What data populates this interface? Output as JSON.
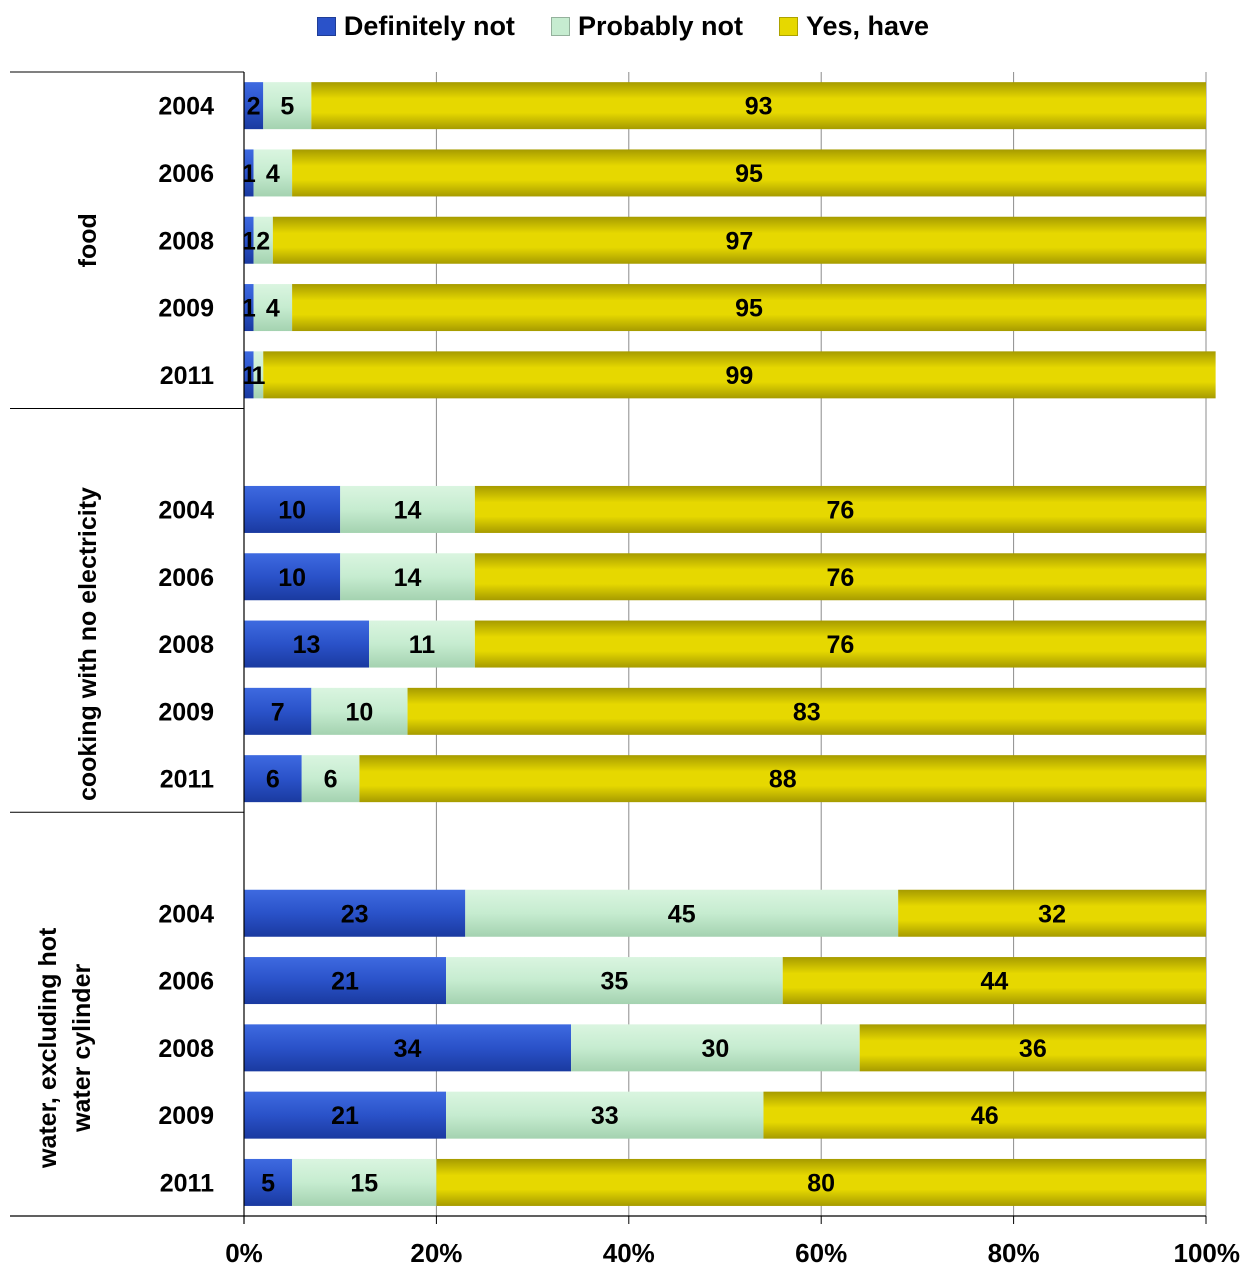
{
  "legend": {
    "items": [
      {
        "label": "Definitely not",
        "color": "#2a52c9"
      },
      {
        "label": "Probably not",
        "color": "#c6ecd0"
      },
      {
        "label": "Yes, have",
        "color": "#e6d800"
      }
    ]
  },
  "chart_data": {
    "type": "bar",
    "orientation": "horizontal",
    "stacked": "percent",
    "xlim": [
      0,
      100
    ],
    "x_ticks": [
      "0%",
      "20%",
      "40%",
      "60%",
      "80%",
      "100%"
    ],
    "grid": "vertical",
    "legend_position": "top",
    "series": [
      {
        "name": "Definitely not",
        "color": "#2a52c9",
        "label_color": "#000000"
      },
      {
        "name": "Probably not",
        "color": "#c6ecd0",
        "label_color": "#000000"
      },
      {
        "name": "Yes, have",
        "color": "#e6d800",
        "label_color": "#000000"
      }
    ],
    "groups": [
      {
        "name": "food",
        "rows": [
          {
            "year": "2004",
            "values": [
              2,
              5,
              93
            ]
          },
          {
            "year": "2006",
            "values": [
              1,
              4,
              95
            ]
          },
          {
            "year": "2008",
            "values": [
              1,
              2,
              97
            ]
          },
          {
            "year": "2009",
            "values": [
              1,
              4,
              95
            ]
          },
          {
            "year": "2011",
            "values": [
              1,
              1,
              99
            ]
          }
        ]
      },
      {
        "name": "cooking with no electricity",
        "rows": [
          {
            "year": "2004",
            "values": [
              10,
              14,
              76
            ]
          },
          {
            "year": "2006",
            "values": [
              10,
              14,
              76
            ]
          },
          {
            "year": "2008",
            "values": [
              13,
              11,
              76
            ]
          },
          {
            "year": "2009",
            "values": [
              7,
              10,
              83
            ]
          },
          {
            "year": "2011",
            "values": [
              6,
              6,
              88
            ]
          }
        ]
      },
      {
        "name": "water, excluding hot water cylinder",
        "rows": [
          {
            "year": "2004",
            "values": [
              23,
              45,
              32
            ]
          },
          {
            "year": "2006",
            "values": [
              21,
              35,
              44
            ]
          },
          {
            "year": "2008",
            "values": [
              34,
              30,
              36
            ]
          },
          {
            "year": "2009",
            "values": [
              21,
              33,
              46
            ]
          },
          {
            "year": "2011",
            "values": [
              5,
              15,
              80
            ]
          }
        ]
      }
    ]
  }
}
